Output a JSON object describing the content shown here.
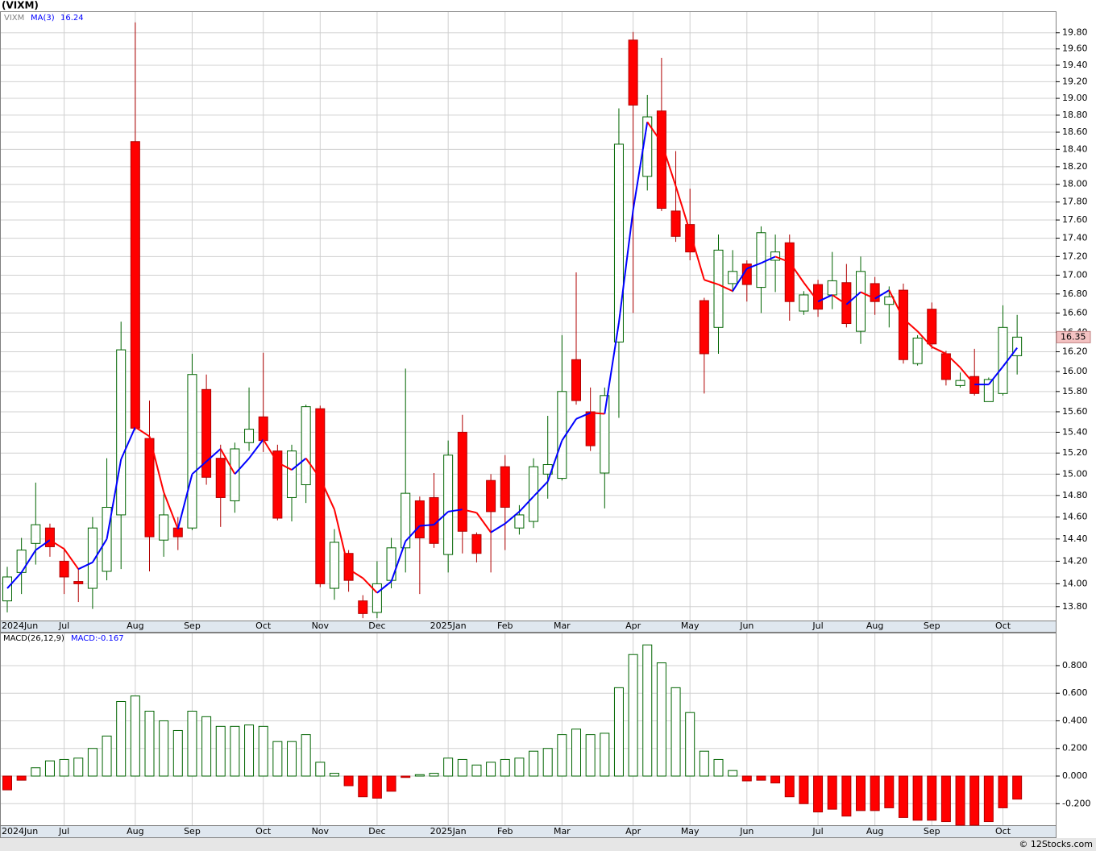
{
  "chart_data": [
    {
      "type": "candlestick",
      "title": "(VIXM)",
      "symbol": "VIXM",
      "categories": [
        "2024Jun",
        null,
        null,
        null,
        "Jul",
        null,
        null,
        null,
        null,
        "Aug",
        null,
        null,
        null,
        "Sep",
        null,
        null,
        null,
        null,
        "Oct",
        null,
        null,
        null,
        "Nov",
        null,
        null,
        null,
        "Dec",
        null,
        null,
        null,
        null,
        "2025Jan",
        null,
        null,
        null,
        "Feb",
        null,
        null,
        null,
        "Mar",
        null,
        null,
        null,
        null,
        "Apr",
        null,
        null,
        null,
        "May",
        null,
        null,
        null,
        "Jun",
        null,
        null,
        null,
        null,
        "Jul",
        null,
        null,
        null,
        "Aug",
        null,
        null,
        null,
        "Sep",
        null,
        null,
        null,
        null,
        "Oct",
        null
      ],
      "open": [
        13.85,
        14.1,
        14.36,
        14.5,
        14.2,
        14.02,
        13.96,
        14.11,
        14.62,
        18.49,
        15.34,
        14.39,
        14.5,
        14.5,
        15.82,
        15.15,
        14.75,
        15.3,
        15.55,
        15.22,
        14.78,
        14.9,
        15.63,
        13.96,
        14.27,
        13.85,
        13.75,
        14.03,
        14.32,
        14.75,
        14.78,
        14.26,
        15.4,
        14.44,
        14.94,
        15.07,
        14.5,
        14.56,
        15.0,
        14.96,
        16.12,
        15.6,
        15.01,
        16.3,
        19.71,
        18.09,
        18.85,
        17.7,
        17.55,
        16.73,
        16.45,
        16.91,
        17.12,
        16.87,
        17.16,
        17.35,
        16.62,
        16.9,
        16.79,
        16.92,
        16.41,
        16.91,
        16.69,
        16.84,
        16.08,
        16.64,
        16.18,
        15.86,
        15.95,
        15.7,
        15.78,
        16.16
      ],
      "high": [
        14.15,
        14.41,
        14.92,
        14.54,
        14.32,
        14.13,
        14.6,
        15.15,
        16.51,
        19.93,
        15.71,
        14.81,
        14.6,
        16.18,
        15.97,
        15.28,
        15.3,
        15.84,
        16.19,
        15.28,
        15.28,
        15.67,
        15.66,
        14.49,
        14.3,
        13.9,
        14.2,
        14.41,
        16.03,
        14.79,
        15.01,
        15.32,
        15.57,
        14.46,
        15.0,
        15.18,
        14.71,
        15.15,
        15.56,
        16.37,
        17.03,
        15.84,
        15.84,
        18.88,
        19.81,
        19.04,
        19.49,
        18.38,
        17.95,
        16.76,
        17.44,
        17.27,
        17.16,
        17.53,
        17.44,
        17.44,
        16.83,
        16.95,
        17.25,
        17.12,
        17.2,
        16.98,
        16.88,
        16.91,
        16.37,
        16.71,
        16.21,
        15.99,
        16.23,
        15.94,
        16.68,
        16.58
      ],
      "low": [
        13.75,
        13.91,
        14.17,
        14.24,
        13.91,
        13.84,
        13.78,
        14.03,
        14.13,
        15.42,
        14.11,
        14.24,
        14.3,
        14.48,
        14.9,
        14.51,
        14.64,
        15.22,
        15.21,
        14.57,
        14.56,
        14.73,
        13.97,
        13.86,
        13.93,
        13.7,
        13.7,
        13.96,
        14.1,
        13.91,
        14.32,
        14.1,
        14.27,
        14.19,
        14.1,
        14.3,
        14.44,
        14.5,
        14.77,
        14.94,
        15.67,
        15.22,
        14.68,
        15.54,
        16.6,
        17.93,
        17.7,
        17.36,
        17.16,
        15.78,
        16.18,
        16.82,
        16.72,
        16.6,
        16.82,
        16.52,
        16.58,
        16.56,
        16.64,
        16.45,
        16.28,
        16.58,
        16.45,
        16.08,
        16.06,
        16.23,
        15.86,
        15.84,
        15.76,
        15.7,
        15.76,
        15.97
      ],
      "close": [
        14.06,
        14.3,
        14.53,
        14.33,
        14.06,
        14.0,
        14.5,
        14.69,
        16.22,
        15.44,
        14.42,
        14.62,
        14.42,
        15.97,
        14.97,
        14.78,
        15.24,
        15.43,
        15.32,
        14.59,
        15.22,
        15.65,
        14.0,
        14.37,
        14.03,
        13.74,
        14.0,
        14.32,
        14.82,
        14.41,
        14.36,
        15.18,
        14.47,
        14.27,
        14.65,
        14.69,
        14.62,
        15.07,
        15.09,
        15.8,
        15.71,
        15.27,
        15.76,
        18.46,
        18.92,
        18.78,
        17.73,
        17.42,
        17.25,
        16.18,
        17.27,
        17.04,
        16.9,
        17.46,
        17.25,
        16.72,
        16.79,
        16.64,
        16.94,
        16.49,
        17.04,
        16.72,
        16.77,
        16.12,
        16.34,
        16.28,
        15.92,
        15.91,
        15.78,
        15.92,
        16.45,
        16.35
      ],
      "up_color": "#006400",
      "down_color": "#ff0000",
      "series": [
        {
          "name": "MA(3)",
          "up_color": "#0000ff",
          "down_color": "#ff0000",
          "values": [
            13.96,
            14.1,
            14.3,
            14.39,
            14.31,
            14.13,
            14.19,
            14.4,
            15.14,
            15.45,
            15.36,
            14.83,
            14.49,
            15.0,
            15.12,
            15.24,
            15.0,
            15.15,
            15.33,
            15.11,
            15.04,
            15.15,
            14.96,
            14.67,
            14.13,
            14.05,
            13.92,
            14.02,
            14.38,
            14.52,
            14.53,
            14.65,
            14.67,
            14.64,
            14.46,
            14.54,
            14.65,
            14.79,
            14.93,
            15.32,
            15.53,
            15.59,
            15.58,
            16.5,
            17.71,
            18.72,
            18.48,
            17.98,
            17.47,
            16.95,
            16.9,
            16.83,
            17.07,
            17.13,
            17.2,
            17.14,
            16.92,
            16.72,
            16.79,
            16.69,
            16.82,
            16.75,
            16.84,
            16.54,
            16.41,
            16.25,
            16.18,
            16.04,
            15.87,
            15.87,
            16.05,
            16.24
          ]
        }
      ],
      "log_scale": true,
      "grid": true,
      "ylim": [
        13.68,
        20.07
      ],
      "yticks": [
        {
          "value": 13.8,
          "label": "13.80"
        },
        {
          "value": 14.0,
          "label": "14.00"
        },
        {
          "value": 14.2,
          "label": "14.20"
        },
        {
          "value": 14.4,
          "label": "14.40"
        },
        {
          "value": 14.6,
          "label": "14.60"
        },
        {
          "value": 14.8,
          "label": "14.80"
        },
        {
          "value": 15.0,
          "label": "15.00"
        },
        {
          "value": 15.2,
          "label": "15.20"
        },
        {
          "value": 15.4,
          "label": "15.40"
        },
        {
          "value": 15.6,
          "label": "15.60"
        },
        {
          "value": 15.8,
          "label": "15.80"
        },
        {
          "value": 16.0,
          "label": "16.00"
        },
        {
          "value": 16.2,
          "label": "16.20"
        },
        {
          "value": 16.4,
          "label": "16.40"
        },
        {
          "value": 16.6,
          "label": "16.60"
        },
        {
          "value": 16.8,
          "label": "16.80"
        },
        {
          "value": 17.0,
          "label": "17.00"
        },
        {
          "value": 17.2,
          "label": "17.20"
        },
        {
          "value": 17.4,
          "label": "17.40"
        },
        {
          "value": 17.6,
          "label": "17.60"
        },
        {
          "value": 17.8,
          "label": "17.80"
        },
        {
          "value": 18.0,
          "label": "18.00"
        },
        {
          "value": 18.2,
          "label": "18.20"
        },
        {
          "value": 18.4,
          "label": "18.40"
        },
        {
          "value": 18.6,
          "label": "18.60"
        },
        {
          "value": 18.8,
          "label": "18.80"
        },
        {
          "value": 19.0,
          "label": "19.00"
        },
        {
          "value": 19.2,
          "label": "19.20"
        },
        {
          "value": 19.4,
          "label": "19.40"
        },
        {
          "value": 19.6,
          "label": "19.60"
        },
        {
          "value": 19.8,
          "label": "19.80"
        }
      ]
    },
    {
      "type": "bar",
      "title": "MACD(26,12,9)",
      "label": "MACD:-0.167",
      "values": [
        -0.1,
        -0.03,
        0.06,
        0.11,
        0.12,
        0.13,
        0.2,
        0.29,
        0.54,
        0.58,
        0.47,
        0.4,
        0.33,
        0.47,
        0.43,
        0.36,
        0.36,
        0.37,
        0.36,
        0.25,
        0.25,
        0.3,
        0.1,
        0.02,
        -0.07,
        -0.15,
        -0.16,
        -0.11,
        -0.01,
        0.01,
        0.02,
        0.13,
        0.12,
        0.08,
        0.1,
        0.12,
        0.13,
        0.18,
        0.2,
        0.3,
        0.34,
        0.3,
        0.31,
        0.64,
        0.88,
        0.95,
        0.82,
        0.64,
        0.46,
        0.18,
        0.12,
        0.04,
        -0.035,
        -0.03,
        -0.05,
        -0.15,
        -0.2,
        -0.26,
        -0.24,
        -0.29,
        -0.25,
        -0.25,
        -0.23,
        -0.3,
        -0.32,
        -0.32,
        -0.33,
        -0.36,
        -0.36,
        -0.33,
        -0.23,
        -0.167
      ],
      "up_color": "#006400",
      "down_color": "#ff0000",
      "grid": true,
      "ylim": [
        -0.356,
        1.039
      ],
      "yticks": [
        {
          "value": -0.2,
          "label": "-0.200"
        },
        {
          "value": 0,
          "label": "0.000"
        },
        {
          "value": 0.2,
          "label": "0.200"
        },
        {
          "value": 0.4,
          "label": "0.400"
        },
        {
          "value": 0.6,
          "label": "0.600"
        },
        {
          "value": 0.8,
          "label": "0.800"
        }
      ]
    }
  ],
  "footer": "© 12Stocks.com"
}
